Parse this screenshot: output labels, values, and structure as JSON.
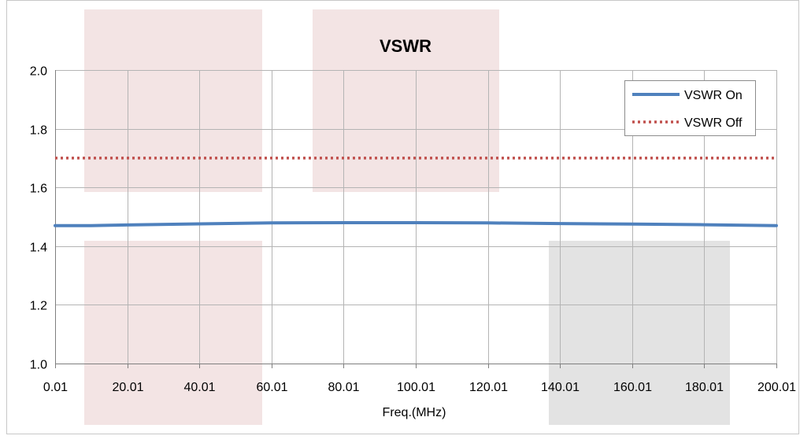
{
  "chart_data": {
    "type": "line",
    "title": "VSWR",
    "xlabel": "Freq.(MHz)",
    "ylabel": "",
    "xlim": [
      0.01,
      200.01
    ],
    "ylim": [
      1.0,
      2.0
    ],
    "x_ticks": [
      0.01,
      20.01,
      40.01,
      60.01,
      80.01,
      100.01,
      120.01,
      140.01,
      160.01,
      180.01,
      200.01
    ],
    "x_tick_labels": [
      "0.01",
      "20.01",
      "40.01",
      "60.01",
      "80.01",
      "100.01",
      "120.01",
      "140.01",
      "160.01",
      "180.01",
      "200.01"
    ],
    "y_ticks": [
      1.0,
      1.2,
      1.4,
      1.6,
      1.8,
      2.0
    ],
    "y_tick_labels": [
      "1.0",
      "1.2",
      "1.4",
      "1.6",
      "1.8",
      "2.0"
    ],
    "grid": true,
    "legend_position": "top-right",
    "series": [
      {
        "name": "VSWR On",
        "style": "solid",
        "color": "#4F81BD",
        "x": [
          0.01,
          10.01,
          20.01,
          40.01,
          60.01,
          80.01,
          100.01,
          120.01,
          140.01,
          160.01,
          180.01,
          200.01
        ],
        "y": [
          1.47,
          1.47,
          1.472,
          1.476,
          1.479,
          1.48,
          1.48,
          1.479,
          1.477,
          1.475,
          1.473,
          1.47
        ]
      },
      {
        "name": "VSWR Off",
        "style": "dotted",
        "color": "#C0504D",
        "x": [
          0.01,
          20.01,
          40.01,
          60.01,
          80.01,
          100.01,
          120.01,
          140.01,
          160.01,
          180.01,
          200.01
        ],
        "y": [
          1.7,
          1.7,
          1.7,
          1.7,
          1.7,
          1.7,
          1.7,
          1.7,
          1.7,
          1.7,
          1.7
        ]
      }
    ]
  }
}
